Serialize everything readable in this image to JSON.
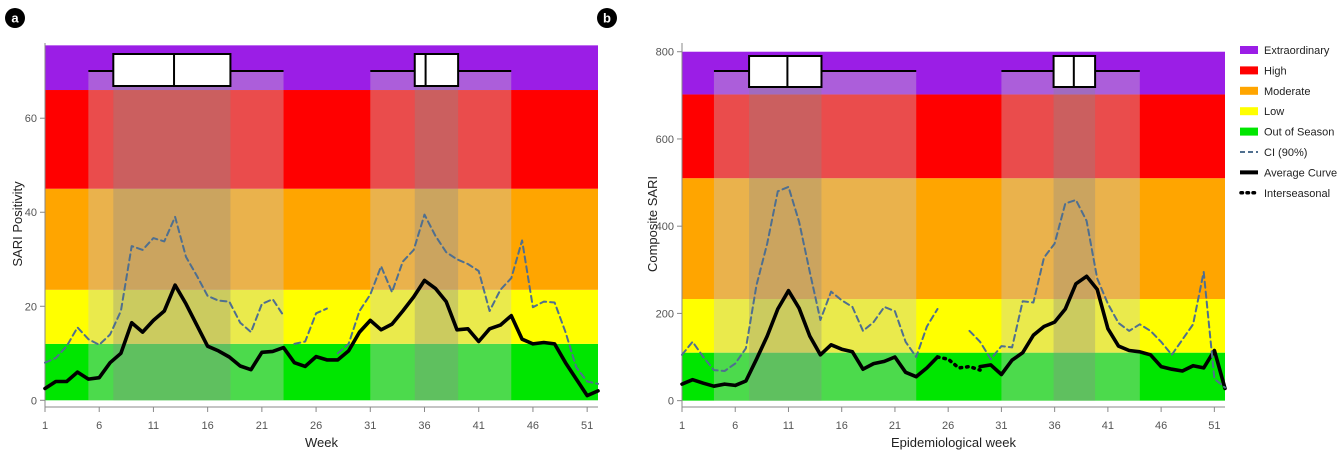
{
  "figure": {
    "panels": [
      {
        "panel_label": "a",
        "chart_data": {
          "type": "line",
          "xlabel": "Week",
          "ylabel": "SARI Positivity",
          "xlim": [
            1,
            52
          ],
          "ylim": [
            -1,
            76
          ],
          "x_ticks": [
            1,
            6,
            11,
            16,
            21,
            26,
            31,
            36,
            41,
            46,
            51
          ],
          "y_ticks": [
            0,
            20,
            40,
            60
          ],
          "grid": false,
          "bands": [
            {
              "label": "Out of Season",
              "y0": 0,
              "y1": 12
            },
            {
              "label": "Low",
              "y0": 12,
              "y1": 23.5
            },
            {
              "label": "Moderate",
              "y0": 23.5,
              "y1": 45
            },
            {
              "label": "High",
              "y0": 45,
              "y1": 66
            },
            {
              "label": "Extraordinary",
              "y0": 66,
              "y1": 75.5
            }
          ],
          "season_spans": [
            {
              "outer": [
                5,
                23
              ],
              "inner": [
                7.3,
                18.1
              ],
              "box_left": 7.3,
              "box_right": 18.1,
              "median": 12.9
            },
            {
              "outer": [
                31,
                44
              ],
              "inner": [
                35.1,
                39.1
              ],
              "box_left": 35.1,
              "box_right": 39.1,
              "median": 36.1
            }
          ],
          "series": [
            {
              "name": "Average Curve",
              "x": [
                1,
                2,
                3,
                4,
                5,
                6,
                7,
                8,
                9,
                10,
                11,
                12,
                13,
                14,
                15,
                16,
                17,
                18,
                19,
                20,
                21,
                22,
                23,
                24,
                25,
                26,
                27,
                28,
                29,
                30,
                31,
                32,
                33,
                34,
                35,
                36,
                37,
                38,
                39,
                40,
                41,
                42,
                43,
                44,
                45,
                46,
                47,
                48,
                49,
                50,
                51,
                52
              ],
              "values": [
                2.5,
                4,
                4,
                6,
                4.5,
                4.8,
                8,
                10,
                16.5,
                14.5,
                17,
                19,
                24.5,
                20.5,
                16,
                11.5,
                10.5,
                9.2,
                7.3,
                6.5,
                10.2,
                10.4,
                11.2,
                8,
                7.2,
                9.3,
                8.6,
                8.6,
                10.5,
                14.5,
                17,
                15,
                16.2,
                19,
                22,
                25.5,
                23.8,
                21,
                15,
                15.2,
                12.5,
                15.2,
                16,
                18,
                13,
                12,
                12.3,
                12,
                8,
                4.5,
                1,
                2
              ]
            },
            {
              "name": "CI (90%)",
              "x": [
                1,
                2,
                3,
                4,
                5,
                6,
                7,
                8,
                9,
                10,
                11,
                12,
                13,
                14,
                15,
                16,
                17,
                18,
                19,
                20,
                21,
                22,
                23
              ],
              "values": [
                8,
                9,
                11.5,
                15.5,
                13,
                11.8,
                14,
                19,
                32.8,
                32,
                34.5,
                33.8,
                39,
                30.5,
                26.5,
                22.2,
                21.2,
                21,
                16.5,
                14.5,
                20.5,
                21.5,
                18
              ]
            },
            {
              "name": "CI (90%)",
              "x": [
                24,
                25,
                26,
                27
              ],
              "values": [
                12,
                12.5,
                18.5,
                19.5
              ]
            },
            {
              "name": "CI (90%)",
              "x": [
                28,
                29,
                30,
                31,
                32,
                33,
                34,
                35,
                36,
                37,
                38,
                39,
                40,
                41,
                42,
                43,
                44,
                45,
                46,
                47,
                48,
                49,
                50,
                51,
                52
              ],
              "values": [
                10,
                12,
                19,
                22.5,
                28.5,
                23,
                29.5,
                32,
                39.5,
                35,
                31.5,
                30,
                29,
                27.5,
                19,
                23.5,
                26,
                34,
                19.8,
                21,
                20.8,
                14.5,
                7,
                4,
                3.5
              ]
            }
          ]
        }
      },
      {
        "panel_label": "b",
        "chart_data": {
          "type": "line",
          "xlabel": "Epidemiological  week",
          "ylabel": "Composite SARI",
          "xlim": [
            1,
            52
          ],
          "ylim": [
            -10,
            820
          ],
          "x_ticks": [
            1,
            6,
            11,
            16,
            21,
            26,
            31,
            36,
            41,
            46,
            51
          ],
          "y_ticks": [
            0,
            200,
            400,
            600,
            800
          ],
          "grid": false,
          "bands": [
            {
              "label": "Out of Season",
              "y0": 0,
              "y1": 110
            },
            {
              "label": "Low",
              "y0": 110,
              "y1": 233
            },
            {
              "label": "Moderate",
              "y0": 233,
              "y1": 510
            },
            {
              "label": "High",
              "y0": 510,
              "y1": 702
            },
            {
              "label": "Extraordinary",
              "y0": 702,
              "y1": 800
            }
          ],
          "season_spans": [
            {
              "outer": [
                4,
                23
              ],
              "inner": [
                7.3,
                14.1
              ],
              "box_left": 7.3,
              "box_right": 14.1,
              "median": 10.9
            },
            {
              "outer": [
                31,
                44
              ],
              "inner": [
                35.9,
                39.8
              ],
              "box_left": 35.9,
              "box_right": 39.8,
              "median": 37.8
            }
          ],
          "series": [
            {
              "name": "Average Curve",
              "x": [
                1,
                2,
                3,
                4,
                5,
                6,
                7,
                8,
                9,
                10,
                11,
                12,
                13,
                14,
                15,
                16,
                17,
                18,
                19,
                20,
                21,
                22,
                23,
                24,
                25
              ],
              "values": [
                38,
                48,
                40,
                33,
                38,
                35,
                45,
                95,
                148,
                210,
                252,
                212,
                148,
                105,
                128,
                118,
                112,
                72,
                85,
                90,
                100,
                65,
                55,
                75,
                100
              ]
            },
            {
              "name": "Interseasonal",
              "x": [
                25,
                26,
                27,
                28,
                29
              ],
              "values": [
                100,
                95,
                75,
                78,
                70
              ]
            },
            {
              "name": "Average Curve",
              "x": [
                29,
                30,
                31,
                32,
                33,
                34,
                35,
                36,
                37,
                38,
                39,
                40,
                41,
                42,
                43,
                44,
                45,
                46,
                47,
                48,
                49,
                50,
                51,
                52
              ],
              "values": [
                78,
                82,
                60,
                93,
                110,
                150,
                170,
                180,
                210,
                268,
                285,
                255,
                165,
                125,
                115,
                112,
                105,
                78,
                72,
                68,
                80,
                75,
                115,
                28
              ]
            },
            {
              "name": "CI (90%)",
              "x": [
                1,
                2,
                3,
                4,
                5,
                6,
                7,
                8,
                9,
                10,
                11,
                12,
                13,
                14,
                15,
                16,
                17,
                18,
                19,
                20,
                21,
                22,
                23,
                24,
                25
              ],
              "values": [
                105,
                135,
                100,
                70,
                68,
                85,
                120,
                265,
                360,
                480,
                490,
                410,
                295,
                185,
                250,
                230,
                215,
                160,
                180,
                215,
                205,
                135,
                100,
                170,
                210
              ]
            },
            {
              "name": "CI (90%)",
              "x": [
                28,
                29,
                30,
                31,
                32,
                33,
                34,
                35,
                36,
                37,
                38,
                39,
                40,
                41,
                42,
                43,
                44,
                45,
                46,
                47,
                48,
                49,
                50,
                51,
                52
              ],
              "values": [
                160,
                135,
                95,
                125,
                122,
                228,
                225,
                328,
                360,
                452,
                460,
                412,
                280,
                222,
                178,
                160,
                175,
                160,
                135,
                105,
                140,
                175,
                295,
                50,
                30
              ]
            }
          ],
          "legend": {
            "position": "right",
            "entries": [
              {
                "label": "Extraordinary",
                "kind": "swatch",
                "color": "#9B1EE6"
              },
              {
                "label": "High",
                "kind": "swatch",
                "color": "#FF0000"
              },
              {
                "label": "Moderate",
                "kind": "swatch",
                "color": "#FFA500"
              },
              {
                "label": "Low",
                "kind": "swatch",
                "color": "#FFFF00"
              },
              {
                "label": "Out of Season",
                "kind": "swatch",
                "color": "#00E600"
              },
              {
                "label": "CI (90%)",
                "kind": "dashed",
                "color": "#4F6F8F"
              },
              {
                "label": "Average Curve",
                "kind": "solid",
                "color": "#000000"
              },
              {
                "label": "Interseasonal",
                "kind": "dotted",
                "color": "#000000"
              }
            ]
          }
        }
      }
    ],
    "colors": {
      "extraordinary": "#9B1EE6",
      "high": "#FF0000",
      "moderate": "#FFA500",
      "low": "#FFFF00",
      "out_of_season": "#00E600",
      "ci": "#4F6F8F",
      "curve": "#000000"
    }
  }
}
